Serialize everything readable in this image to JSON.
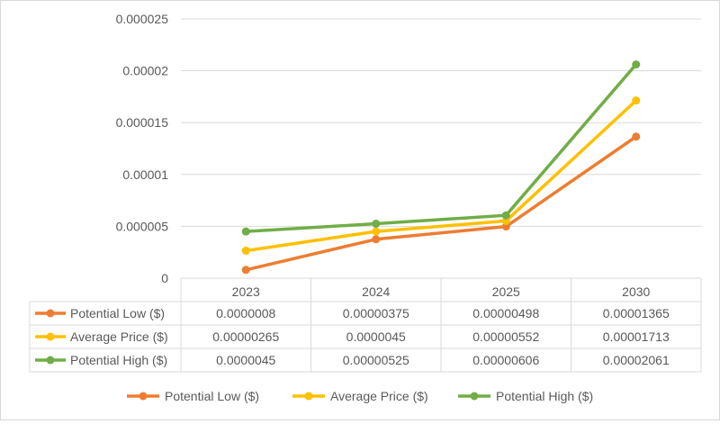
{
  "chart_data": {
    "type": "line",
    "title": "",
    "xlabel": "",
    "ylabel": "",
    "categories": [
      "2023",
      "2024",
      "2025",
      "2030"
    ],
    "ylim": [
      0,
      2.5e-05
    ],
    "yticks": [
      0,
      5e-06,
      1e-05,
      1.5e-05,
      2e-05,
      2.5e-05
    ],
    "ytick_labels": [
      "0",
      "0.000005",
      "0.00001",
      "0.000015",
      "0.00002",
      "0.000025"
    ],
    "grid": true,
    "legend_position": "bottom",
    "data_table": true,
    "series": [
      {
        "name": "Potential Low ($)",
        "color": "#ED7D31",
        "values": [
          8e-07,
          3.75e-06,
          4.98e-06,
          1.365e-05
        ],
        "display_values": [
          "0.0000008",
          "0.00000375",
          "0.00000498",
          "0.00001365"
        ]
      },
      {
        "name": "Average Price ($)",
        "color": "#FFC000",
        "values": [
          2.65e-06,
          4.5e-06,
          5.52e-06,
          1.713e-05
        ],
        "display_values": [
          "0.00000265",
          "0.0000045",
          "0.00000552",
          "0.00001713"
        ]
      },
      {
        "name": "Potential High ($)",
        "color": "#70AD47",
        "values": [
          4.5e-06,
          5.25e-06,
          6.06e-06,
          2.061e-05
        ],
        "display_values": [
          "0.0000045",
          "0.00000525",
          "0.00000606",
          "0.00002061"
        ]
      }
    ]
  }
}
